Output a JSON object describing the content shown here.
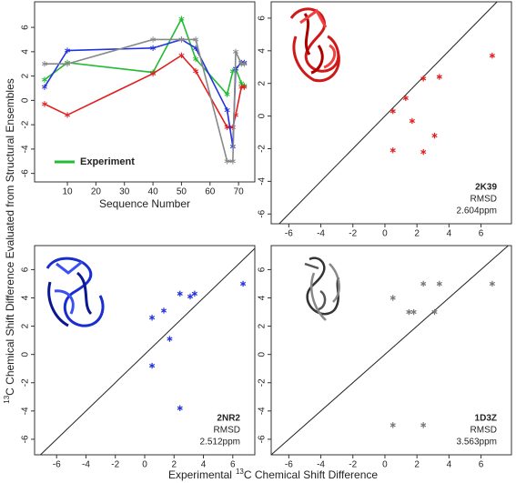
{
  "figure": {
    "y_label_sup": "13",
    "y_label": "C Chemical Shift Difference Evaluated from Structural Ensembles",
    "x_label_pre": "Experimental",
    "x_label_sup": "13",
    "x_label": "C Chemical Shift Difference"
  },
  "chart_data": [
    {
      "type": "line",
      "x_label": "Sequence Number",
      "x": [
        2,
        10,
        40,
        50,
        55,
        66,
        68,
        69,
        71,
        72
      ],
      "xlim": [
        -1.5,
        75.7
      ],
      "xticks": [
        10,
        20,
        30,
        40,
        50,
        60,
        70
      ],
      "ylim": [
        -6.7,
        8.1
      ],
      "yticks": [
        -6,
        -4,
        -2,
        0,
        2,
        4,
        6
      ],
      "legend": "lower left",
      "series": [
        {
          "name": "Experiment",
          "color": "#22bb33",
          "values": [
            1.7,
            3.1,
            2.3,
            6.7,
            3.4,
            0.5,
            2.4,
            2.6,
            1.4,
            1.2
          ]
        },
        {
          "color": "#e02020",
          "values": [
            -0.3,
            -1.2,
            2.2,
            3.7,
            2.4,
            -2.2,
            -2.2,
            -1.2,
            1.1,
            1.1
          ]
        },
        {
          "color": "#2233dd",
          "values": [
            1.1,
            4.1,
            4.3,
            5.0,
            4.3,
            -0.8,
            -3.8,
            2.6,
            3.1,
            3.1
          ]
        },
        {
          "color": "#888888",
          "values": [
            3.0,
            3.0,
            5.0,
            5.0,
            5.0,
            -5.0,
            -5.0,
            4.0,
            3.0,
            3.0
          ]
        }
      ]
    },
    {
      "type": "scatter",
      "color": "#e02020",
      "diagonal": true,
      "x": [
        0.5,
        0.5,
        1.3,
        1.7,
        2.4,
        2.4,
        3.1,
        3.4,
        6.7
      ],
      "values": [
        0.3,
        -2.1,
        1.1,
        -0.3,
        2.3,
        -2.2,
        -1.2,
        2.4,
        3.7
      ],
      "xlim": [
        -7.1,
        7.9
      ],
      "xticks": [
        -6,
        -4,
        -2,
        0,
        2,
        4,
        6
      ],
      "ylim": [
        -6.6,
        7.0
      ],
      "yticks": [
        -6,
        -4,
        -2,
        0,
        2,
        4,
        6
      ],
      "annotations": [
        "2K39",
        "RMSD",
        "2.604ppm"
      ]
    },
    {
      "type": "scatter",
      "color": "#2233dd",
      "diagonal": true,
      "x": [
        0.5,
        0.5,
        1.3,
        1.7,
        2.4,
        2.4,
        3.1,
        3.4,
        6.7
      ],
      "values": [
        2.6,
        -0.8,
        3.1,
        1.1,
        4.3,
        -3.8,
        4.1,
        4.3,
        5.0
      ],
      "xlim": [
        -7.5,
        7.5
      ],
      "xticks": [
        -6,
        -4,
        -2,
        0,
        2,
        4,
        6
      ],
      "ylim": [
        -7.1,
        7.7
      ],
      "yticks": [
        -6,
        -4,
        -2,
        0,
        2,
        4,
        6
      ],
      "annotations": [
        "2NR2",
        "RMSD",
        "2.512ppm"
      ]
    },
    {
      "type": "scatter",
      "color": "#777777",
      "diagonal": true,
      "x": [
        0.5,
        0.5,
        1.5,
        1.8,
        2.4,
        2.4,
        3.1,
        3.4,
        6.7
      ],
      "values": [
        4.0,
        -5.0,
        3.0,
        3.0,
        5.0,
        -5.0,
        3.0,
        5.0,
        5.0
      ],
      "xlim": [
        -7.1,
        7.9
      ],
      "xticks": [
        -6,
        -4,
        -2,
        0,
        2,
        4,
        6
      ],
      "ylim": [
        -7.1,
        7.7
      ],
      "yticks": [
        -6,
        -4,
        -2,
        0,
        2,
        4,
        6
      ],
      "annotations": [
        "1D3Z",
        "RMSD",
        "3.563ppm"
      ]
    }
  ]
}
